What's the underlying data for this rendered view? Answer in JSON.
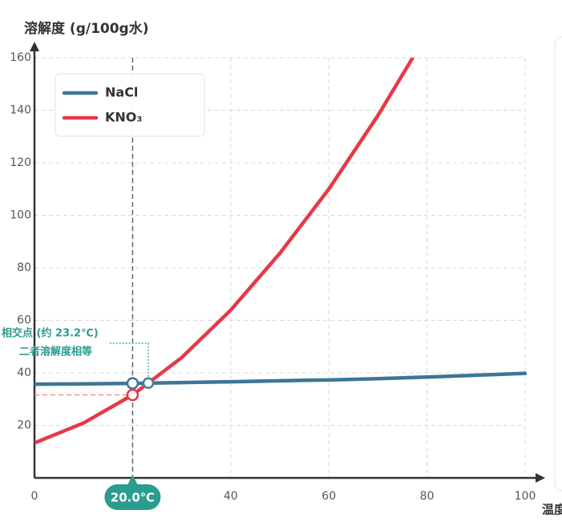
{
  "chart_data": {
    "type": "line",
    "title": "溶解度 (g/100g水)",
    "x_label": "温度",
    "x": [
      0,
      10,
      20,
      30,
      40,
      50,
      60,
      70,
      80
    ],
    "series": [
      {
        "name": "NaCl",
        "color": "#3f7499",
        "values": [
          35.7,
          35.8,
          36.0,
          36.3,
          36.6,
          37.0,
          37.3,
          37.8,
          38.4
        ],
        "end": {
          "x": 100,
          "y": 39.8
        }
      },
      {
        "name": "KNO₃",
        "color": "#e63946",
        "values": [
          13.3,
          20.9,
          31.6,
          45.8,
          63.9,
          85.5,
          110,
          138,
          169
        ]
      }
    ],
    "xlim": [
      0,
      100
    ],
    "xticks": [
      0,
      20,
      40,
      60,
      80,
      100
    ],
    "ylim": [
      0,
      160
    ],
    "yticks": [
      20,
      40,
      60,
      80,
      100,
      120,
      140,
      160
    ],
    "grid": true,
    "legend": "top-left",
    "cursor": {
      "x": 20,
      "label": "20.0℃",
      "color": "#2a9d8f"
    },
    "intersection": {
      "x": 23.2,
      "y": 36.1,
      "label": "相交点 (约 23.2℃)",
      "note": "二者溶解度相等",
      "color": "#2a9d8f"
    }
  }
}
